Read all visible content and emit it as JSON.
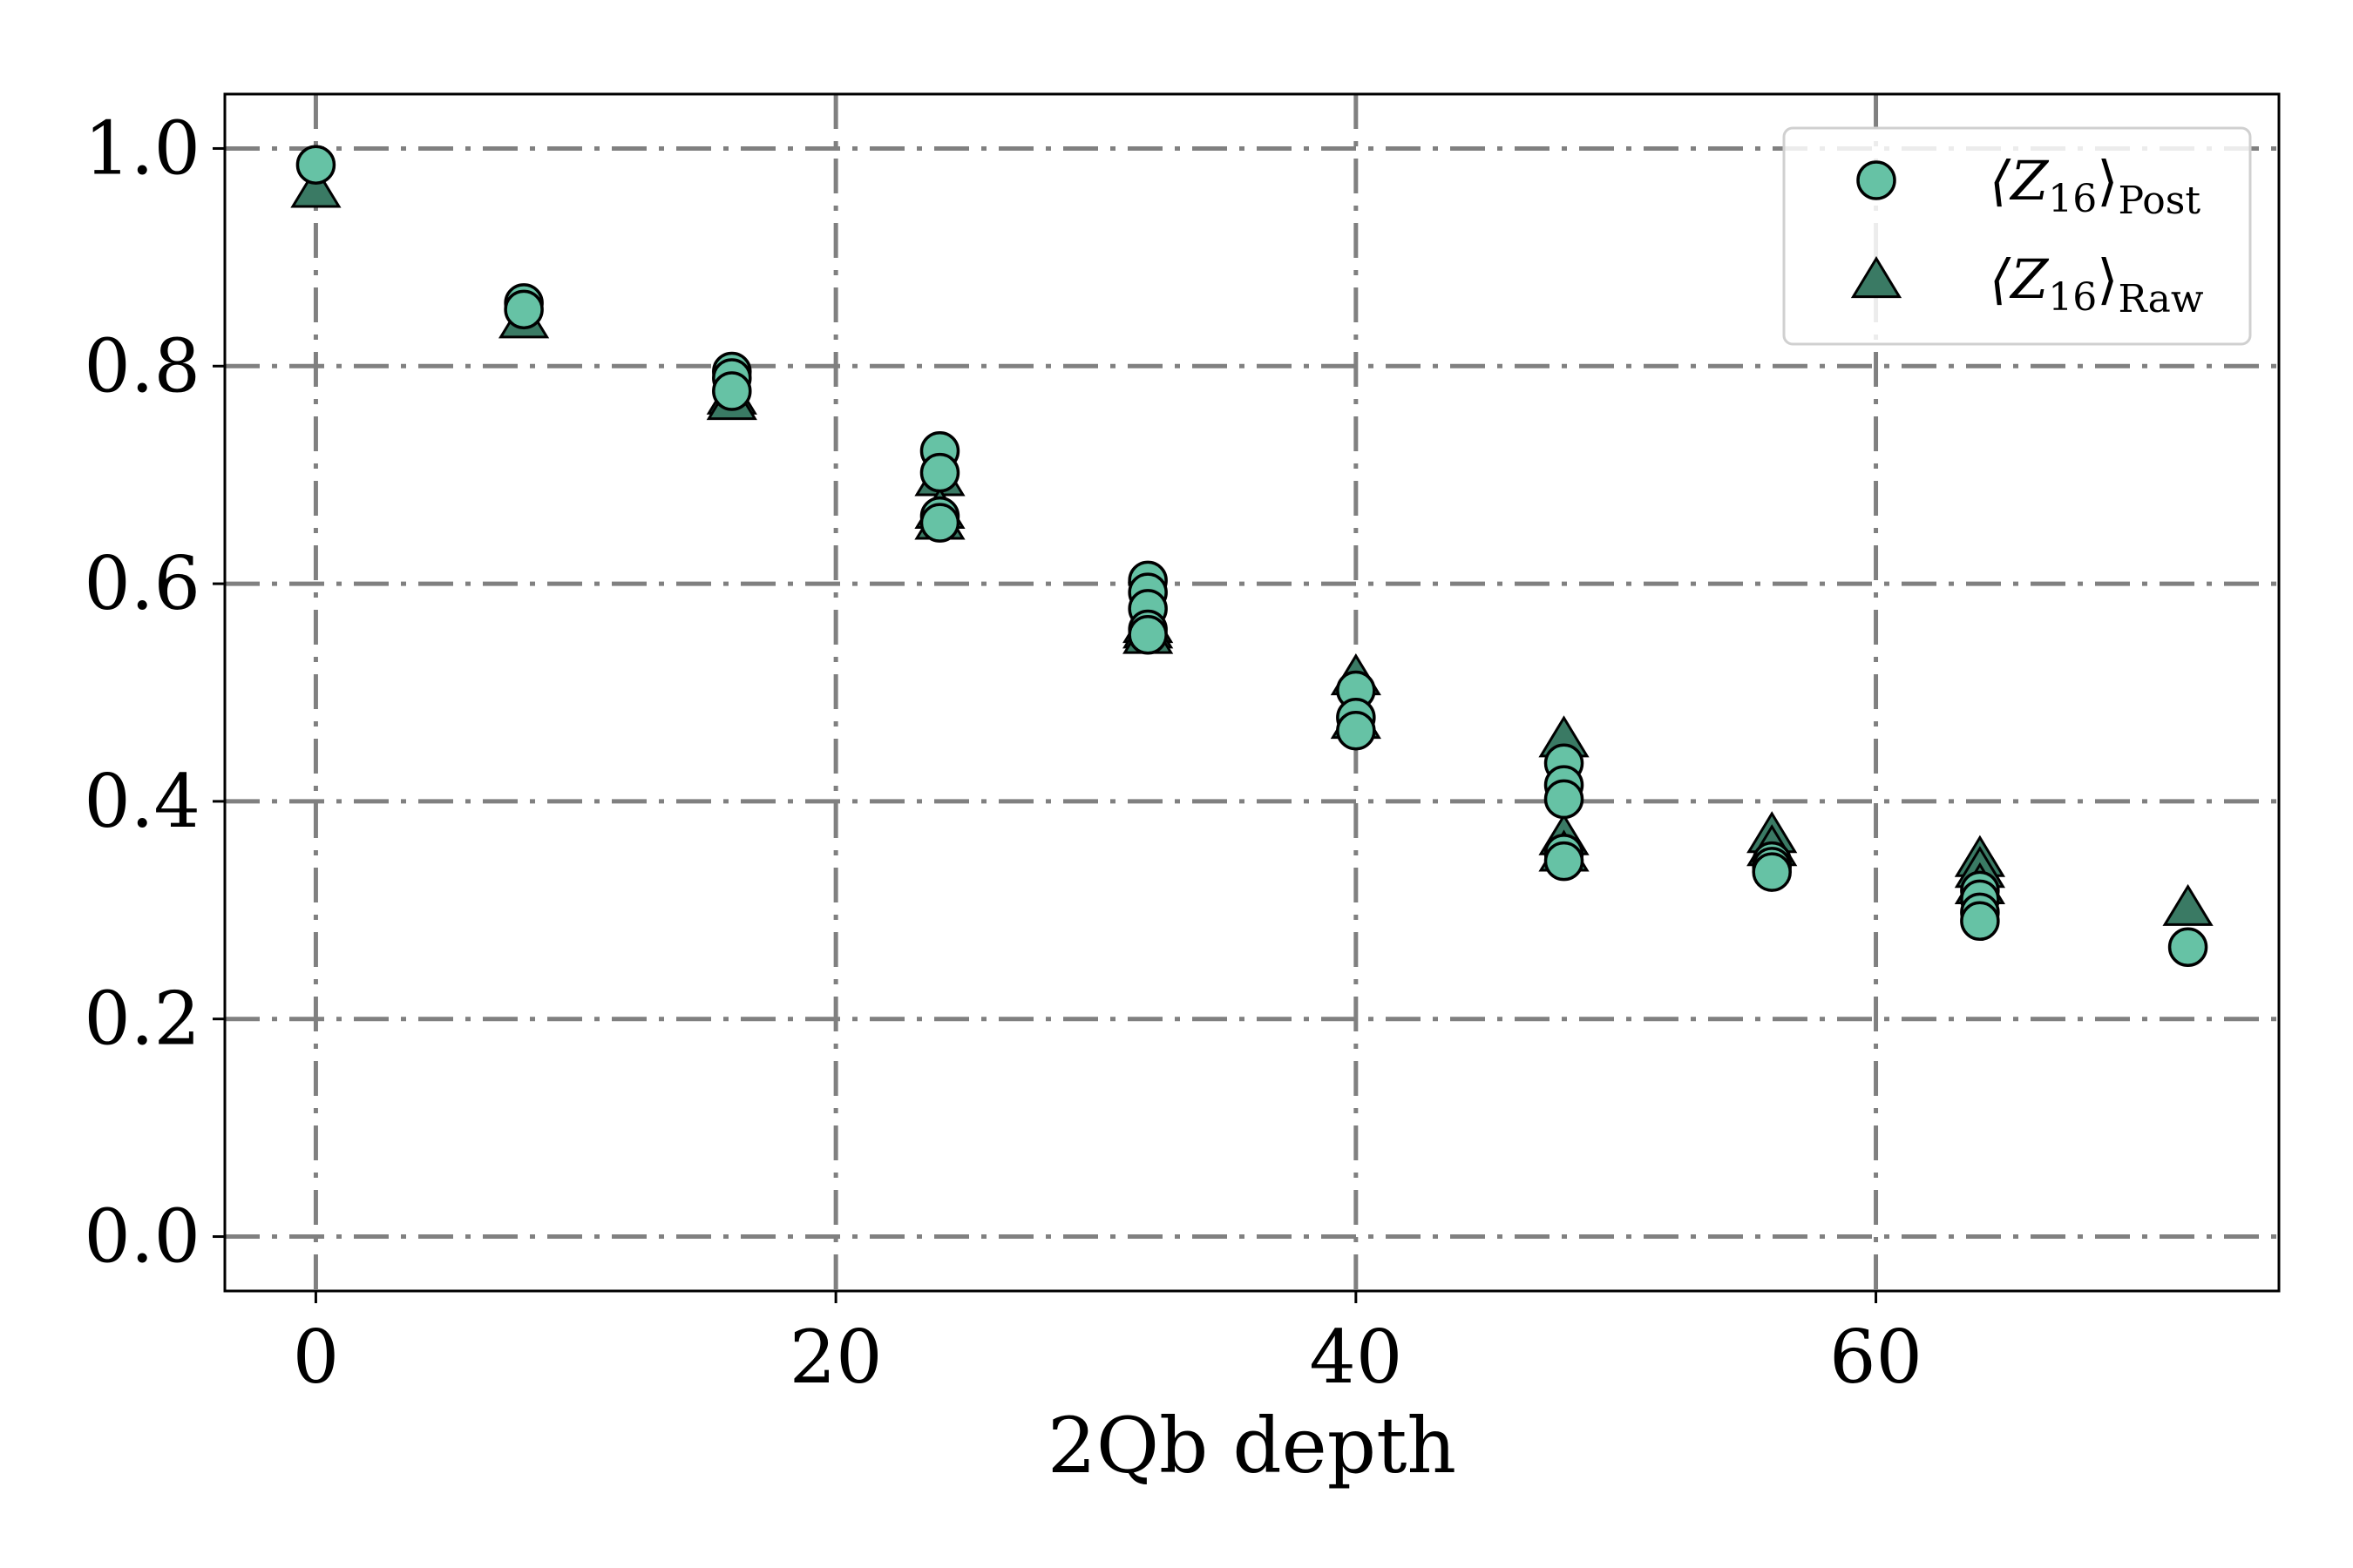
{
  "chart_data": {
    "type": "scatter",
    "title": "",
    "xlabel": "2Qb depth",
    "ylabel": "",
    "xlim": [
      -3.5,
      75.5
    ],
    "ylim": [
      -0.05,
      1.05
    ],
    "x_ticks": [
      0,
      20,
      40,
      60
    ],
    "x_tick_labels": [
      "0",
      "20",
      "40",
      "60"
    ],
    "y_ticks": [
      0.0,
      0.2,
      0.4,
      0.6,
      0.8,
      1.0
    ],
    "y_tick_labels": [
      "0.0",
      "0.2",
      "0.4",
      "0.6",
      "0.8",
      "1.0"
    ],
    "grid": true,
    "legend_position": "top-right",
    "series": [
      {
        "name": "⟨Z16⟩Post",
        "legend_main": "⟨Z",
        "legend_sub1": "16",
        "legend_close": "⟩",
        "legend_sub2": "Post",
        "marker": "circle",
        "color": "#66c2a5",
        "x": [
          0,
          8,
          8,
          16,
          16,
          16,
          24,
          24,
          24,
          24,
          32,
          32,
          32,
          32,
          32,
          40,
          40,
          40,
          48,
          48,
          48,
          48,
          48,
          56,
          56,
          56,
          64,
          64,
          64,
          64,
          72
        ],
        "y": [
          0.985,
          0.858,
          0.852,
          0.795,
          0.789,
          0.777,
          0.722,
          0.702,
          0.662,
          0.656,
          0.603,
          0.592,
          0.577,
          0.558,
          0.553,
          0.502,
          0.477,
          0.465,
          0.435,
          0.415,
          0.402,
          0.352,
          0.345,
          0.345,
          0.34,
          0.335,
          0.318,
          0.31,
          0.298,
          0.29,
          0.266
        ]
      },
      {
        "name": "⟨Z16⟩Raw",
        "legend_main": "⟨Z",
        "legend_sub1": "16",
        "legend_close": "⟩",
        "legend_sub2": "Raw",
        "marker": "triangle",
        "color": "#3a7a64",
        "x": [
          0,
          8,
          16,
          16,
          24,
          24,
          24,
          32,
          32,
          32,
          40,
          40,
          48,
          48,
          48,
          56,
          56,
          64,
          64,
          64,
          72
        ],
        "y": [
          0.96,
          0.84,
          0.77,
          0.765,
          0.695,
          0.665,
          0.655,
          0.56,
          0.555,
          0.55,
          0.512,
          0.472,
          0.455,
          0.365,
          0.35,
          0.367,
          0.355,
          0.345,
          0.335,
          0.32,
          0.3
        ]
      }
    ]
  }
}
